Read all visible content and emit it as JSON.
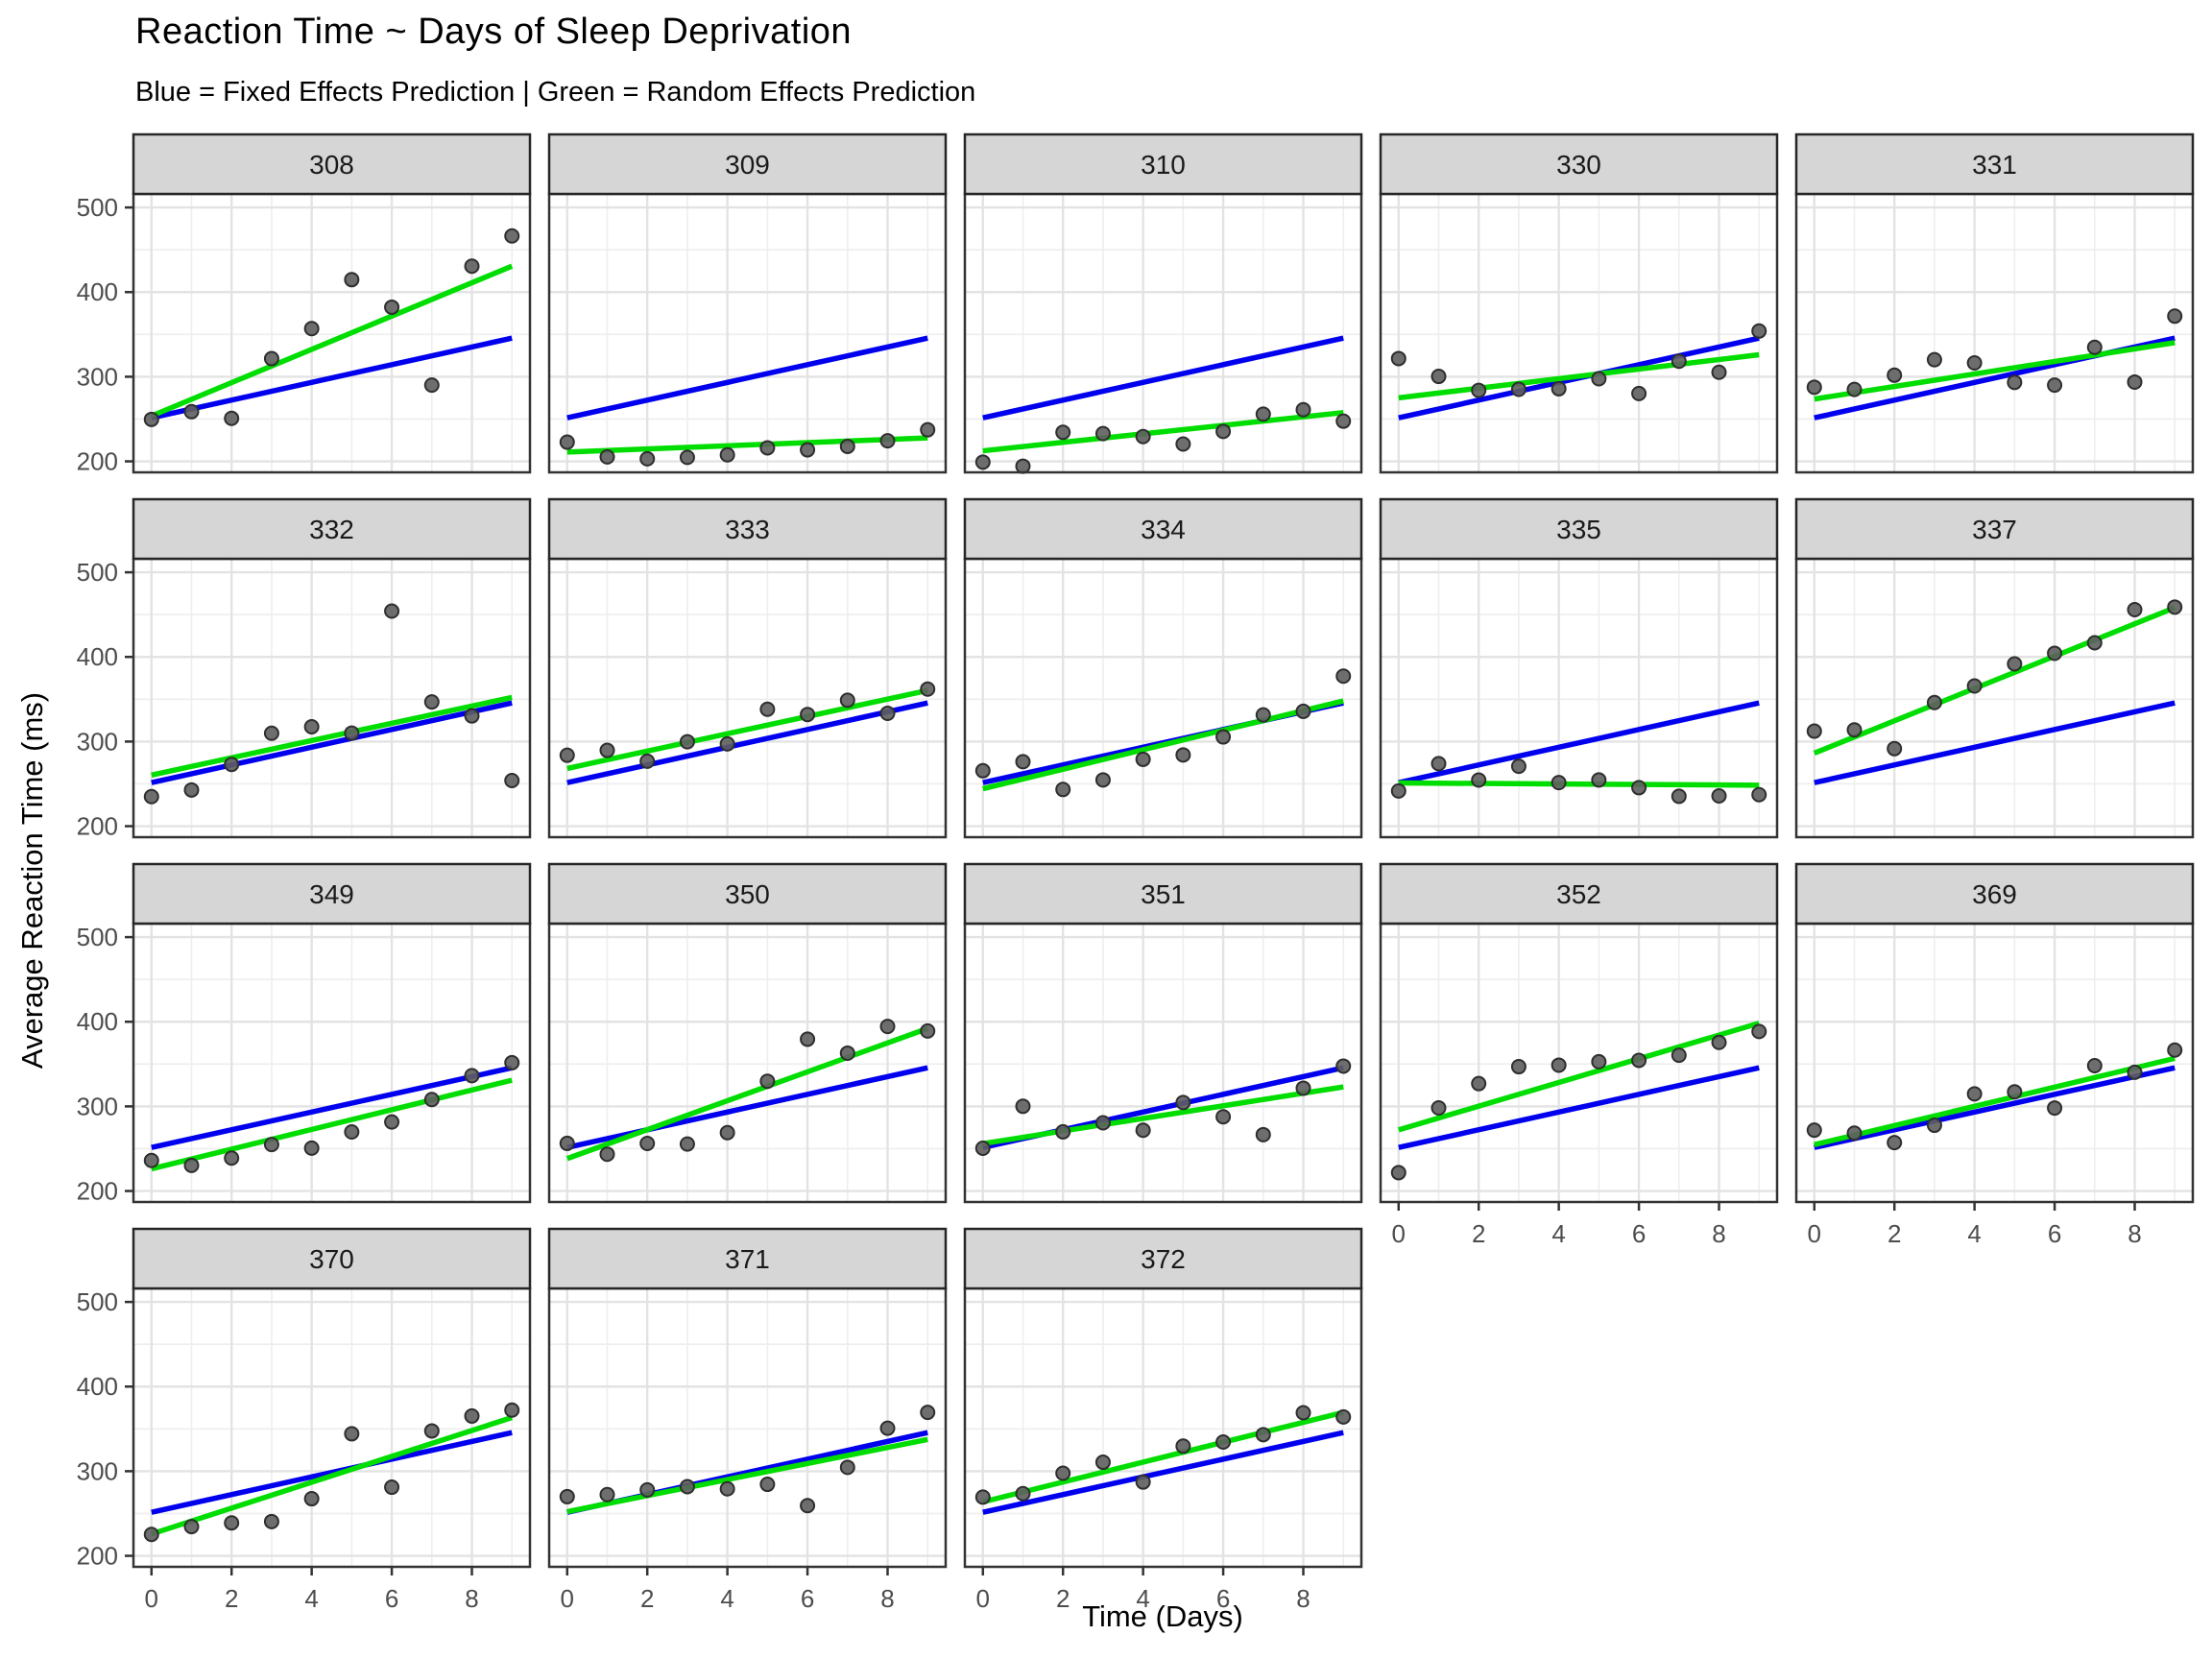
{
  "title": "Reaction Time ~ Days of Sleep Deprivation",
  "subtitle": "Blue = Fixed Effects Prediction | Green = Random Effects Prediction",
  "axes": {
    "x_label": "Time (Days)",
    "y_label": "Average Reaction Time (ms)",
    "x_ticks": [
      0,
      2,
      4,
      6,
      8
    ],
    "y_ticks": [
      200,
      300,
      400,
      500
    ],
    "x_minor": [
      1,
      3,
      5,
      7,
      9
    ],
    "y_minor": [
      250,
      350,
      450
    ],
    "x_domain": [
      -0.45,
      9.45
    ],
    "y_domain": [
      187,
      516
    ]
  },
  "colors": {
    "fixed_line": "#0000EE",
    "random_line": "#00DD00",
    "point_fill": "#5E5E5E",
    "point_stroke": "#2E2E2E",
    "strip_bg": "#D6D6D6",
    "strip_border": "#262626",
    "panel_border": "#333333",
    "grid_major": "#E3E3E3",
    "grid_minor": "#EEEEEE",
    "axis_text": "#4D4D4D",
    "strip_text": "#1A1A1A"
  },
  "chart_data": {
    "type": "scatter",
    "overlay": "two linear prediction lines per facet (fixed effects, random effects)",
    "facet_by": "Subject",
    "days": [
      0,
      1,
      2,
      3,
      4,
      5,
      6,
      7,
      8,
      9
    ],
    "fixed_effects": {
      "intercept": 251.41,
      "slope": 10.47
    },
    "subjects": [
      {
        "id": "308",
        "re_intercept": 253.66,
        "re_slope": 19.67,
        "reaction": [
          249.6,
          258.7,
          250.8,
          321.4,
          356.9,
          414.7,
          382.2,
          290.1,
          430.6,
          466.4
        ]
      },
      {
        "id": "309",
        "re_intercept": 211.01,
        "re_slope": 1.85,
        "reaction": [
          222.7,
          205.3,
          203.0,
          204.7,
          207.7,
          216.0,
          213.6,
          217.7,
          224.3,
          237.3
        ]
      },
      {
        "id": "310",
        "re_intercept": 212.44,
        "re_slope": 5.02,
        "reaction": [
          199.1,
          194.3,
          234.3,
          232.8,
          229.3,
          220.5,
          235.4,
          255.8,
          261.0,
          247.5
        ]
      },
      {
        "id": "330",
        "re_intercept": 275.1,
        "re_slope": 5.65,
        "reaction": [
          321.5,
          300.4,
          283.9,
          285.1,
          285.8,
          297.6,
          280.2,
          318.3,
          305.3,
          354.0
        ]
      },
      {
        "id": "331",
        "re_intercept": 273.67,
        "re_slope": 7.4,
        "reaction": [
          287.6,
          285.0,
          301.8,
          320.1,
          316.3,
          293.3,
          290.1,
          334.8,
          293.7,
          371.6
        ]
      },
      {
        "id": "332",
        "re_intercept": 260.44,
        "re_slope": 10.19,
        "reaction": [
          234.9,
          242.8,
          273.0,
          309.8,
          317.5,
          310.0,
          454.2,
          346.8,
          330.3,
          253.9
        ]
      },
      {
        "id": "333",
        "re_intercept": 268.25,
        "re_slope": 10.24,
        "reaction": [
          283.8,
          289.6,
          276.8,
          299.8,
          297.2,
          338.2,
          332.0,
          348.8,
          333.4,
          362.0
        ]
      },
      {
        "id": "334",
        "re_intercept": 244.17,
        "re_slope": 11.54,
        "reaction": [
          265.5,
          276.2,
          243.4,
          254.7,
          279.0,
          284.2,
          305.5,
          331.5,
          335.7,
          377.3
        ]
      },
      {
        "id": "335",
        "re_intercept": 251.07,
        "re_slope": -0.29,
        "reaction": [
          241.6,
          273.9,
          254.5,
          270.8,
          251.5,
          254.6,
          245.5,
          235.3,
          235.8,
          237.2
        ]
      },
      {
        "id": "337",
        "re_intercept": 286.3,
        "re_slope": 19.1,
        "reaction": [
          312.3,
          313.8,
          291.6,
          346.1,
          365.7,
          391.8,
          404.3,
          416.7,
          455.9,
          458.9
        ]
      },
      {
        "id": "349",
        "re_intercept": 226.19,
        "re_slope": 11.64,
        "reaction": [
          236.1,
          230.3,
          238.9,
          254.9,
          250.7,
          269.8,
          281.6,
          308.1,
          336.3,
          351.6
        ]
      },
      {
        "id": "350",
        "re_intercept": 238.34,
        "re_slope": 17.08,
        "reaction": [
          256.3,
          243.5,
          256.2,
          255.5,
          268.9,
          329.7,
          379.4,
          362.9,
          394.5,
          389.1
        ]
      },
      {
        "id": "351",
        "re_intercept": 255.98,
        "re_slope": 7.45,
        "reaction": [
          250.5,
          300.1,
          269.9,
          280.6,
          271.8,
          304.6,
          287.7,
          266.6,
          321.5,
          347.6
        ]
      },
      {
        "id": "352",
        "re_intercept": 272.27,
        "re_slope": 14.0,
        "reaction": [
          221.7,
          298.2,
          326.9,
          346.9,
          348.7,
          352.8,
          354.4,
          360.4,
          375.6,
          388.5
        ]
      },
      {
        "id": "369",
        "re_intercept": 254.68,
        "re_slope": 11.34,
        "reaction": [
          271.9,
          268.4,
          257.2,
          277.7,
          314.8,
          317.2,
          298.1,
          348.1,
          340.3,
          366.5
        ]
      },
      {
        "id": "370",
        "re_intercept": 225.79,
        "re_slope": 15.29,
        "reaction": [
          225.3,
          234.5,
          238.9,
          240.5,
          267.5,
          344.2,
          281.1,
          347.6,
          365.2,
          372.2
        ]
      },
      {
        "id": "371",
        "re_intercept": 252.21,
        "re_slope": 9.48,
        "reaction": [
          269.9,
          272.4,
          277.9,
          281.8,
          279.2,
          284.5,
          259.3,
          304.6,
          350.8,
          369.5
        ]
      },
      {
        "id": "372",
        "re_intercept": 263.72,
        "re_slope": 11.75,
        "reaction": [
          269.4,
          273.5,
          297.6,
          310.6,
          287.2,
          329.6,
          334.5,
          343.2,
          369.1,
          364.1
        ]
      }
    ]
  }
}
